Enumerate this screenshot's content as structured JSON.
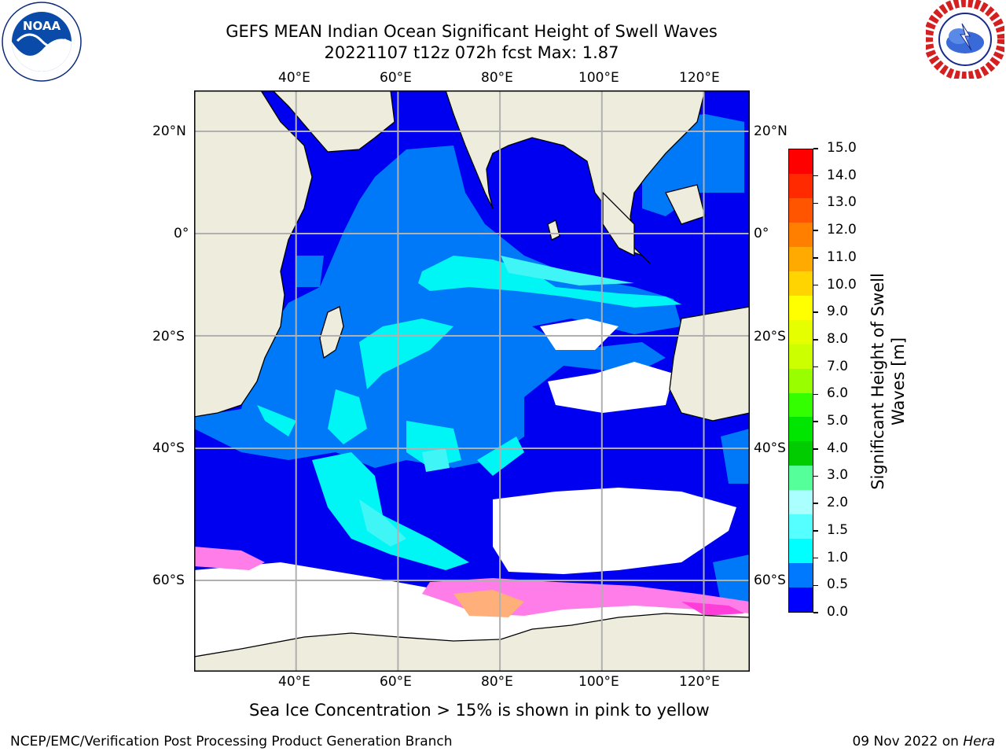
{
  "title": {
    "line1": "GEFS MEAN Indian Ocean Significant Height of Swell Waves",
    "line2": "20221107 t12z 072h fcst   Max: 1.87"
  },
  "map": {
    "lon_ticks": [
      "40°E",
      "60°E",
      "80°E",
      "100°E",
      "120°E"
    ],
    "lat_ticks": [
      "20°N",
      "0°",
      "20°S",
      "40°S",
      "60°S"
    ],
    "extent": {
      "lon": [
        20.0,
        129.0
      ],
      "lat": [
        -76.0,
        27.0
      ]
    },
    "gridlines": true,
    "colors": {
      "land": "#eeecdc",
      "ice": "#ff7de8",
      "sea_0_0.5": "#0000f0",
      "sea_0.5_1.0": "#0079f8",
      "sea_1.0_1.5": "#00f5f5",
      "sea_1.5_2.0": "#3ff5f5"
    }
  },
  "colorbar": {
    "label": "Significant Height of Swell Waves [m]",
    "label_line1": "Significant Height of Swell",
    "label_line2": "Waves [m]",
    "ticks": [
      "15.0",
      "14.0",
      "13.0",
      "12.0",
      "11.0",
      "10.0",
      "9.0",
      "8.0",
      "7.0",
      "6.0",
      "5.0",
      "4.0",
      "3.0",
      "2.0",
      "1.5",
      "1.0",
      "0.5",
      "0.0"
    ],
    "bins_top_to_bottom": [
      "#ff0000",
      "#ff2a00",
      "#ff5500",
      "#ff7f00",
      "#ffaa00",
      "#ffd400",
      "#ffff00",
      "#e6ff00",
      "#ccff00",
      "#99ff00",
      "#33ff00",
      "#00e600",
      "#00cc00",
      "#55ff99",
      "#aaffff",
      "#55ffff",
      "#00ffff",
      "#0079ff",
      "#0000ff"
    ]
  },
  "notes": {
    "sea_ice": "Sea Ice Concentration > 15% is shown in pink to yellow"
  },
  "footer": {
    "left": "NCEP/EMC/Verification Post Processing Product Generation Branch",
    "right_date": "09 Nov 2022 on ",
    "right_host": "Hera"
  },
  "logos": {
    "left_icon": "noaa-logo",
    "right_icon": "nws-logo"
  }
}
